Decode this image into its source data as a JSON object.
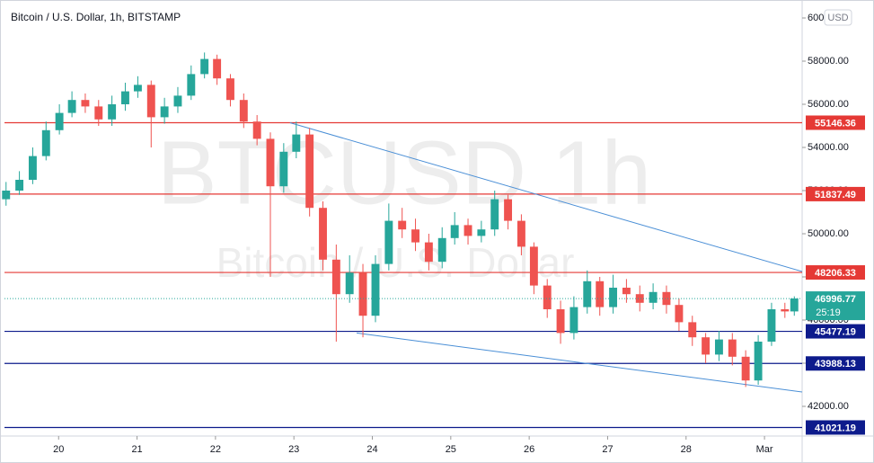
{
  "chart_data": {
    "type": "candlestick",
    "title": "Bitcoin / U.S. Dollar, 1h, BITSTAMP",
    "watermark": "BTCUSD  1h",
    "watermark_subtitle": "Bitcoin / U.S. Dollar",
    "currency": "USD",
    "countdown": "25:19",
    "up_color": "#26a69a",
    "down_color": "#ef5350",
    "x": [
      19.33,
      19.5,
      19.67,
      19.84,
      20.01,
      20.17,
      20.34,
      20.51,
      20.68,
      20.85,
      21.01,
      21.18,
      21.35,
      21.52,
      21.69,
      21.86,
      22.02,
      22.19,
      22.36,
      22.53,
      22.7,
      22.87,
      23.03,
      23.2,
      23.37,
      23.54,
      23.71,
      23.88,
      24.04,
      24.21,
      24.38,
      24.55,
      24.72,
      24.89,
      25.05,
      25.22,
      25.39,
      25.56,
      25.73,
      25.9,
      26.06,
      26.23,
      26.4,
      26.57,
      26.74,
      26.9,
      27.07,
      27.24,
      27.41,
      27.58,
      27.75,
      27.91,
      28.08,
      28.25,
      28.42,
      28.59,
      28.76,
      28.92,
      29.09,
      29.26,
      29.38
    ],
    "open": [
      51600,
      52000,
      52500,
      53600,
      54800,
      55600,
      56200,
      55900,
      55300,
      56000,
      56600,
      56900,
      55400,
      55900,
      56400,
      57400,
      58100,
      57200,
      56200,
      55200,
      54400,
      52200,
      53800,
      54600,
      51200,
      48800,
      47200,
      48200,
      46200,
      48600,
      50600,
      50200,
      49600,
      48700,
      49800,
      50400,
      49900,
      50200,
      51600,
      50600,
      49400,
      47600,
      46500,
      45400,
      46600,
      47800,
      46600,
      47500,
      47200,
      46800,
      47300,
      46700,
      45900,
      45200,
      44400,
      45100,
      44300,
      43200,
      45000,
      46500,
      46400
    ],
    "high": [
      52400,
      52900,
      54000,
      55200,
      56000,
      56600,
      56500,
      56200,
      56400,
      57000,
      57300,
      57100,
      56300,
      56800,
      57800,
      58400,
      58300,
      57400,
      56500,
      55500,
      54700,
      54200,
      55200,
      54900,
      51500,
      49500,
      49000,
      48600,
      49000,
      51400,
      51200,
      50700,
      50000,
      50300,
      51000,
      50700,
      50600,
      52000,
      51800,
      50900,
      49600,
      47900,
      46900,
      47100,
      48300,
      48000,
      48100,
      47900,
      47600,
      47700,
      47600,
      47000,
      46200,
      45400,
      45500,
      45400,
      44600,
      45300,
      46800,
      46800,
      47100
    ],
    "low": [
      51300,
      51800,
      52300,
      53400,
      54600,
      55400,
      55600,
      55000,
      55000,
      55700,
      56300,
      54000,
      55100,
      55600,
      56200,
      57200,
      56900,
      55900,
      54900,
      54100,
      48000,
      51900,
      53500,
      50800,
      48300,
      45000,
      46800,
      45200,
      45900,
      48300,
      49800,
      49200,
      48300,
      48400,
      49500,
      49500,
      49600,
      49900,
      50200,
      49000,
      47200,
      46100,
      44900,
      45100,
      46300,
      46200,
      46300,
      46800,
      46400,
      46500,
      46300,
      45500,
      44800,
      44000,
      44100,
      43900,
      42900,
      43000,
      44800,
      46100,
      46200
    ],
    "close": [
      52000,
      52500,
      53600,
      54800,
      55600,
      56200,
      55900,
      55300,
      56000,
      56600,
      56900,
      55400,
      55900,
      56400,
      57400,
      58100,
      57200,
      56200,
      55200,
      54400,
      52200,
      53800,
      54600,
      51200,
      48800,
      47200,
      48200,
      46200,
      48600,
      50600,
      50200,
      49600,
      48700,
      49800,
      50400,
      49900,
      50200,
      51600,
      50600,
      49400,
      47600,
      46500,
      45400,
      46600,
      47800,
      46600,
      47500,
      47200,
      46800,
      47300,
      46700,
      45900,
      45200,
      44400,
      45100,
      44300,
      43200,
      45000,
      46500,
      46400,
      47000
    ],
    "xlim": [
      19.31,
      29.48
    ],
    "xticks": [
      {
        "value": 20,
        "label": "20"
      },
      {
        "value": 21,
        "label": "21"
      },
      {
        "value": 22,
        "label": "22"
      },
      {
        "value": 23,
        "label": "23"
      },
      {
        "value": 24,
        "label": "24"
      },
      {
        "value": 25,
        "label": "25"
      },
      {
        "value": 26,
        "label": "26"
      },
      {
        "value": 27,
        "label": "27"
      },
      {
        "value": 28,
        "label": "28"
      },
      {
        "value": 29,
        "label": "Mar"
      }
    ],
    "ylim": [
      40625,
      60625
    ],
    "yticks": [
      {
        "value": 42000,
        "label": "42000.00"
      },
      {
        "value": 44000,
        "label": "44000.00"
      },
      {
        "value": 46000,
        "label": "46000.00"
      },
      {
        "value": 48000,
        "label": "48000.00"
      },
      {
        "value": 50000,
        "label": "50000.00"
      },
      {
        "value": 52000,
        "label": "52000.00"
      },
      {
        "value": 54000,
        "label": "54000.00"
      },
      {
        "value": 56000,
        "label": "56000.00"
      },
      {
        "value": 58000,
        "label": "58000.00"
      },
      {
        "value": 60000,
        "label": "60000.00"
      }
    ],
    "levels": [
      {
        "value": 55146.36,
        "color": "#e53935"
      },
      {
        "value": 51837.49,
        "color": "#e53935"
      },
      {
        "value": 48206.33,
        "color": "#e53935"
      },
      {
        "value": 45477.19,
        "color": "#0d1b8c"
      },
      {
        "value": 43988.13,
        "color": "#0d1b8c"
      },
      {
        "value": 41021.19,
        "color": "#0d1b8c"
      }
    ],
    "last_price": 46996.77,
    "trendlines": [
      {
        "x": [
          22.95,
          29.48
        ],
        "y": [
          55146,
          48250
        ],
        "color": "#4a8fd6"
      },
      {
        "x": [
          23.8,
          29.48
        ],
        "y": [
          45400,
          42667
        ],
        "color": "#4a8fd6"
      }
    ]
  }
}
